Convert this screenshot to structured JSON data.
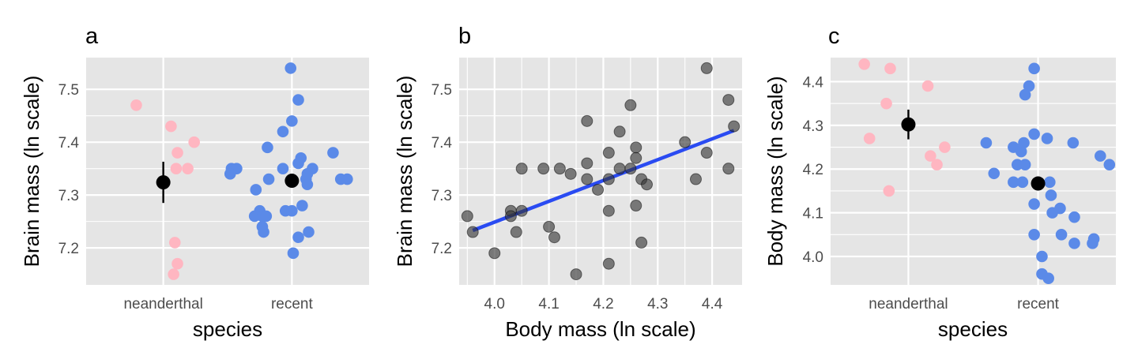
{
  "colors": {
    "panel_background": "#e5e5e5",
    "grid": "#ffffff",
    "neanderthal": "#ffb6c1",
    "recent": "#5b8ae8",
    "points_b": "#333333",
    "fit_line": "#2a4bf2",
    "mean": "#000000"
  },
  "chart_data": [
    {
      "panel": "a",
      "type": "scatter",
      "xlabel": "species",
      "ylabel": "Brain mass (ln scale)",
      "categories": [
        "neanderthal",
        "recent"
      ],
      "ylim": [
        7.13,
        7.56
      ],
      "yticks": [
        7.2,
        7.3,
        7.4,
        7.5
      ],
      "ytick_labels": [
        "7.2",
        "7.3",
        "7.4",
        "7.5"
      ],
      "grid": true,
      "series": [
        {
          "category": "neanderthal",
          "color": "#ffb6c1",
          "points": [
            {
              "x": 0.79,
              "y": 7.47
            },
            {
              "x": 1.06,
              "y": 7.43
            },
            {
              "x": 1.11,
              "y": 7.38
            },
            {
              "x": 1.24,
              "y": 7.4
            },
            {
              "x": 1.1,
              "y": 7.35
            },
            {
              "x": 1.19,
              "y": 7.35
            },
            {
              "x": 1.09,
              "y": 7.21
            },
            {
              "x": 1.11,
              "y": 7.17
            },
            {
              "x": 1.08,
              "y": 7.15
            }
          ]
        },
        {
          "category": "recent",
          "color": "#5b8ae8",
          "points": [
            {
              "x": 1.99,
              "y": 7.54
            },
            {
              "x": 2.05,
              "y": 7.48
            },
            {
              "x": 2.0,
              "y": 7.44
            },
            {
              "x": 1.93,
              "y": 7.42
            },
            {
              "x": 1.81,
              "y": 7.39
            },
            {
              "x": 2.32,
              "y": 7.38
            },
            {
              "x": 2.07,
              "y": 7.37
            },
            {
              "x": 2.05,
              "y": 7.36
            },
            {
              "x": 1.53,
              "y": 7.35
            },
            {
              "x": 1.57,
              "y": 7.35
            },
            {
              "x": 1.93,
              "y": 7.35
            },
            {
              "x": 2.16,
              "y": 7.35
            },
            {
              "x": 1.52,
              "y": 7.34
            },
            {
              "x": 2.12,
              "y": 7.34
            },
            {
              "x": 1.82,
              "y": 7.33
            },
            {
              "x": 2.11,
              "y": 7.33
            },
            {
              "x": 2.12,
              "y": 7.32
            },
            {
              "x": 2.38,
              "y": 7.33
            },
            {
              "x": 2.43,
              "y": 7.33
            },
            {
              "x": 1.72,
              "y": 7.31
            },
            {
              "x": 1.75,
              "y": 7.27
            },
            {
              "x": 1.95,
              "y": 7.27
            },
            {
              "x": 2.0,
              "y": 7.27
            },
            {
              "x": 1.71,
              "y": 7.26
            },
            {
              "x": 1.77,
              "y": 7.26
            },
            {
              "x": 1.8,
              "y": 7.26
            },
            {
              "x": 2.08,
              "y": 7.28
            },
            {
              "x": 1.77,
              "y": 7.24
            },
            {
              "x": 1.78,
              "y": 7.23
            },
            {
              "x": 2.13,
              "y": 7.23
            },
            {
              "x": 2.05,
              "y": 7.22
            },
            {
              "x": 2.01,
              "y": 7.19
            }
          ]
        }
      ],
      "summary": [
        {
          "category": "neanderthal",
          "mean": 7.324,
          "low": 7.285,
          "high": 7.363
        },
        {
          "category": "recent",
          "mean": 7.327,
          "low": 7.314,
          "high": 7.34
        }
      ]
    },
    {
      "panel": "b",
      "type": "scatter",
      "xlabel": "Body mass (ln scale)",
      "ylabel": "Brain mass (ln scale)",
      "xlim": [
        3.935,
        4.455
      ],
      "ylim": [
        7.13,
        7.56
      ],
      "xticks": [
        4.0,
        4.1,
        4.2,
        4.3,
        4.4
      ],
      "xtick_labels": [
        "4.0",
        "4.1",
        "4.2",
        "4.3",
        "4.4"
      ],
      "yticks": [
        7.2,
        7.3,
        7.4,
        7.5
      ],
      "ytick_labels": [
        "7.2",
        "7.3",
        "7.4",
        "7.5"
      ],
      "grid": true,
      "points": [
        {
          "x": 3.95,
          "y": 7.26
        },
        {
          "x": 3.96,
          "y": 7.23
        },
        {
          "x": 4.0,
          "y": 7.19
        },
        {
          "x": 4.03,
          "y": 7.27
        },
        {
          "x": 4.03,
          "y": 7.26
        },
        {
          "x": 4.04,
          "y": 7.23
        },
        {
          "x": 4.05,
          "y": 7.27
        },
        {
          "x": 4.05,
          "y": 7.35
        },
        {
          "x": 4.09,
          "y": 7.35
        },
        {
          "x": 4.1,
          "y": 7.24
        },
        {
          "x": 4.11,
          "y": 7.22
        },
        {
          "x": 4.12,
          "y": 7.35
        },
        {
          "x": 4.14,
          "y": 7.34
        },
        {
          "x": 4.15,
          "y": 7.15
        },
        {
          "x": 4.17,
          "y": 7.44
        },
        {
          "x": 4.17,
          "y": 7.36
        },
        {
          "x": 4.17,
          "y": 7.33
        },
        {
          "x": 4.19,
          "y": 7.31
        },
        {
          "x": 4.21,
          "y": 7.38
        },
        {
          "x": 4.21,
          "y": 7.33
        },
        {
          "x": 4.21,
          "y": 7.27
        },
        {
          "x": 4.21,
          "y": 7.17
        },
        {
          "x": 4.23,
          "y": 7.42
        },
        {
          "x": 4.23,
          "y": 7.35
        },
        {
          "x": 4.25,
          "y": 7.47
        },
        {
          "x": 4.25,
          "y": 7.35
        },
        {
          "x": 4.26,
          "y": 7.39
        },
        {
          "x": 4.26,
          "y": 7.37
        },
        {
          "x": 4.26,
          "y": 7.28
        },
        {
          "x": 4.27,
          "y": 7.33
        },
        {
          "x": 4.28,
          "y": 7.32
        },
        {
          "x": 4.27,
          "y": 7.21
        },
        {
          "x": 4.35,
          "y": 7.4
        },
        {
          "x": 4.37,
          "y": 7.33
        },
        {
          "x": 4.39,
          "y": 7.54
        },
        {
          "x": 4.39,
          "y": 7.38
        },
        {
          "x": 4.43,
          "y": 7.48
        },
        {
          "x": 4.43,
          "y": 7.35
        },
        {
          "x": 4.44,
          "y": 7.43
        }
      ],
      "fit_line": {
        "x": [
          3.96,
          4.44
        ],
        "y": [
          7.233,
          7.422
        ]
      }
    },
    {
      "panel": "c",
      "type": "scatter",
      "xlabel": "species",
      "ylabel": "Body mass (ln scale)",
      "categories": [
        "neanderthal",
        "recent"
      ],
      "ylim": [
        3.935,
        4.455
      ],
      "yticks": [
        4.0,
        4.1,
        4.2,
        4.3,
        4.4
      ],
      "ytick_labels": [
        "4.0",
        "4.1",
        "4.2",
        "4.3",
        "4.4"
      ],
      "grid": true,
      "series": [
        {
          "category": "neanderthal",
          "color": "#ffb6c1",
          "points": [
            {
              "x": 0.66,
              "y": 4.44
            },
            {
              "x": 0.86,
              "y": 4.43
            },
            {
              "x": 1.15,
              "y": 4.39
            },
            {
              "x": 0.83,
              "y": 4.35
            },
            {
              "x": 0.7,
              "y": 4.27
            },
            {
              "x": 1.28,
              "y": 4.25
            },
            {
              "x": 1.17,
              "y": 4.23
            },
            {
              "x": 1.22,
              "y": 4.21
            },
            {
              "x": 0.85,
              "y": 4.15
            }
          ]
        },
        {
          "category": "recent",
          "color": "#5b8ae8",
          "points": [
            {
              "x": 1.97,
              "y": 4.43
            },
            {
              "x": 1.93,
              "y": 4.39
            },
            {
              "x": 1.9,
              "y": 4.37
            },
            {
              "x": 1.97,
              "y": 4.28
            },
            {
              "x": 2.07,
              "y": 4.27
            },
            {
              "x": 1.6,
              "y": 4.26
            },
            {
              "x": 1.89,
              "y": 4.26
            },
            {
              "x": 2.27,
              "y": 4.26
            },
            {
              "x": 1.81,
              "y": 4.25
            },
            {
              "x": 1.87,
              "y": 4.24
            },
            {
              "x": 2.48,
              "y": 4.23
            },
            {
              "x": 1.84,
              "y": 4.21
            },
            {
              "x": 1.9,
              "y": 4.21
            },
            {
              "x": 2.55,
              "y": 4.21
            },
            {
              "x": 1.66,
              "y": 4.19
            },
            {
              "x": 1.81,
              "y": 4.17
            },
            {
              "x": 1.88,
              "y": 4.17
            },
            {
              "x": 2.09,
              "y": 4.17
            },
            {
              "x": 2.1,
              "y": 4.14
            },
            {
              "x": 1.97,
              "y": 4.12
            },
            {
              "x": 2.17,
              "y": 4.11
            },
            {
              "x": 2.11,
              "y": 4.1
            },
            {
              "x": 2.28,
              "y": 4.09
            },
            {
              "x": 1.97,
              "y": 4.05
            },
            {
              "x": 2.18,
              "y": 4.05
            },
            {
              "x": 2.43,
              "y": 4.04
            },
            {
              "x": 2.28,
              "y": 4.03
            },
            {
              "x": 2.42,
              "y": 4.03
            },
            {
              "x": 2.03,
              "y": 4.0
            },
            {
              "x": 2.03,
              "y": 3.96
            },
            {
              "x": 2.08,
              "y": 3.95
            }
          ]
        }
      ],
      "summary": [
        {
          "category": "neanderthal",
          "mean": 4.302,
          "low": 4.268,
          "high": 4.336
        },
        {
          "category": "recent",
          "mean": 4.167,
          "low": 4.151,
          "high": 4.183
        }
      ]
    }
  ]
}
